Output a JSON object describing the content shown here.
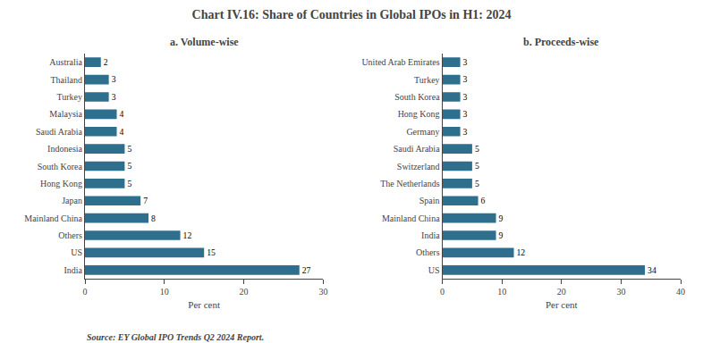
{
  "title": "Chart IV.16: Share of Countries in Global IPOs in H1: 2024",
  "annotations": [
    "Source: EY Global IPO Trends Q2 2024 Report."
  ],
  "chart_data": [
    {
      "type": "bar",
      "orientation": "horizontal",
      "title": "a. Volume-wise",
      "categories": [
        "India",
        "US",
        "Others",
        "Mainland China",
        "Japan",
        "Hong Kong",
        "South Korea",
        "Indonesia",
        "Saudi Arabia",
        "Malaysia",
        "Turkey",
        "Thailand",
        "Australia"
      ],
      "values": [
        27,
        15,
        12,
        8,
        7,
        5,
        5,
        5,
        4,
        4,
        3,
        3,
        2
      ],
      "color": "#2e6f8e",
      "xlabel": "Per cent",
      "xlim": [
        0,
        30
      ],
      "xticks": [
        0,
        10,
        20,
        30
      ],
      "data_labels": true,
      "grid": false
    },
    {
      "type": "bar",
      "orientation": "horizontal",
      "title": "b. Proceeds-wise",
      "categories": [
        "US",
        "Others",
        "India",
        "Mainland China",
        "Spain",
        "The Netherlands",
        "Switzerland",
        "Saudi Arabia",
        "Germany",
        "Hong Kong",
        "South Korea",
        "Turkey",
        "United Arab Emirates"
      ],
      "values": [
        34,
        12,
        9,
        9,
        6,
        5,
        5,
        5,
        3,
        3,
        3,
        3,
        3
      ],
      "color": "#2e6f8e",
      "xlabel": "Per cent",
      "xlim": [
        0,
        40
      ],
      "xticks": [
        0,
        10,
        20,
        30,
        40
      ],
      "data_labels": true,
      "grid": false
    }
  ]
}
